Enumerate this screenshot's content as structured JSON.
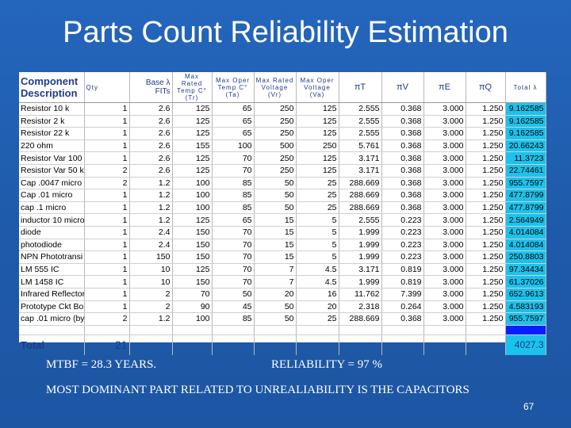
{
  "slide": {
    "title": "Parts Count Reliability Estimation",
    "page_number": "67",
    "mtbf_text": "MTBF = 28.3 YEARS.",
    "reliability_text": "RELIABILITY = 97 %",
    "note_text": "MOST DOMINANT  PART RELATED TO UNREALIABILITY IS THE CAPACITORS"
  },
  "table": {
    "headers": {
      "component": "Component Description",
      "qty": "Qty",
      "base": "Base λ FITs",
      "max_rated_temp": "Max Rated Temp C° (Tr)",
      "max_oper_temp": "Max Oper Temp C° (Ta)",
      "max_rated_voltage": "Max Rated Voltage (Vr)",
      "max_oper_voltage": "Max Oper Voltage (Va)",
      "pi_t": "πT",
      "pi_v": "πV",
      "pi_e": "πE",
      "pi_q": "πQ",
      "total": "Total λ"
    },
    "rows": [
      {
        "name": "Resistor 10 k",
        "qty": "1",
        "base": "2.6",
        "tr": "125",
        "ta": "65",
        "vr": "250",
        "va": "125",
        "pt": "2.555",
        "pv": "0.368",
        "pe": "3.000",
        "pq": "1.250",
        "total": "9.162585"
      },
      {
        "name": "Resistor 2 k",
        "qty": "1",
        "base": "2.6",
        "tr": "125",
        "ta": "65",
        "vr": "250",
        "va": "125",
        "pt": "2.555",
        "pv": "0.368",
        "pe": "3.000",
        "pq": "1.250",
        "total": "9.162585"
      },
      {
        "name": "Resistor 22 k",
        "qty": "1",
        "base": "2.6",
        "tr": "125",
        "ta": "65",
        "vr": "250",
        "va": "125",
        "pt": "2.555",
        "pv": "0.368",
        "pe": "3.000",
        "pq": "1.250",
        "total": "9.162585"
      },
      {
        "name": "220 ohm",
        "qty": "1",
        "base": "2.6",
        "tr": "155",
        "ta": "100",
        "vr": "500",
        "va": "250",
        "pt": "5.761",
        "pv": "0.368",
        "pe": "3.000",
        "pq": "1.250",
        "total": "20.66243"
      },
      {
        "name": "Resistor Var 100",
        "qty": "1",
        "base": "2.6",
        "tr": "125",
        "ta": "70",
        "vr": "250",
        "va": "125",
        "pt": "3.171",
        "pv": "0.368",
        "pe": "3.000",
        "pq": "1.250",
        "total": "11.3723"
      },
      {
        "name": "Resistor Var 50 k",
        "qty": "2",
        "base": "2.6",
        "tr": "125",
        "ta": "70",
        "vr": "250",
        "va": "125",
        "pt": "3.171",
        "pv": "0.368",
        "pe": "3.000",
        "pq": "1.250",
        "total": "22.74461"
      },
      {
        "name": "Cap .0047 micro",
        "qty": "2",
        "base": "1.2",
        "tr": "100",
        "ta": "85",
        "vr": "50",
        "va": "25",
        "pt": "288.669",
        "pv": "0.368",
        "pe": "3.000",
        "pq": "1.250",
        "total": "955.7597"
      },
      {
        "name": "Cap .01 micro",
        "qty": "1",
        "base": "1.2",
        "tr": "100",
        "ta": "85",
        "vr": "50",
        "va": "25",
        "pt": "288.669",
        "pv": "0.368",
        "pe": "3.000",
        "pq": "1.250",
        "total": "477.8799"
      },
      {
        "name": "cap .1 micro",
        "qty": "1",
        "base": "1.2",
        "tr": "100",
        "ta": "85",
        "vr": "50",
        "va": "25",
        "pt": "288.669",
        "pv": "0.368",
        "pe": "3.000",
        "pq": "1.250",
        "total": "477.8799"
      },
      {
        "name": "inductor 10 micro",
        "qty": "1",
        "base": "1.2",
        "tr": "125",
        "ta": "65",
        "vr": "15",
        "va": "5",
        "pt": "2.555",
        "pv": "0.223",
        "pe": "3.000",
        "pq": "1.250",
        "total": "2.564949"
      },
      {
        "name": "diode",
        "qty": "1",
        "base": "2.4",
        "tr": "150",
        "ta": "70",
        "vr": "15",
        "va": "5",
        "pt": "1.999",
        "pv": "0.223",
        "pe": "3.000",
        "pq": "1.250",
        "total": "4.014084"
      },
      {
        "name": "photodiode",
        "qty": "1",
        "base": "2.4",
        "tr": "150",
        "ta": "70",
        "vr": "15",
        "va": "5",
        "pt": "1.999",
        "pv": "0.223",
        "pe": "3.000",
        "pq": "1.250",
        "total": "4.014084"
      },
      {
        "name": "NPN Phototransi",
        "qty": "1",
        "base": "150",
        "tr": "150",
        "ta": "70",
        "vr": "15",
        "va": "5",
        "pt": "1.999",
        "pv": "0.223",
        "pe": "3.000",
        "pq": "1.250",
        "total": "250.8803"
      },
      {
        "name": "LM 555 IC",
        "qty": "1",
        "base": "10",
        "tr": "125",
        "ta": "70",
        "vr": "7",
        "va": "4.5",
        "pt": "3.171",
        "pv": "0.819",
        "pe": "3.000",
        "pq": "1.250",
        "total": "97.34434"
      },
      {
        "name": "LM 1458 IC",
        "qty": "1",
        "base": "10",
        "tr": "150",
        "ta": "70",
        "vr": "7",
        "va": "4.5",
        "pt": "1.999",
        "pv": "0.819",
        "pe": "3.000",
        "pq": "1.250",
        "total": "61.37026"
      },
      {
        "name": "Infrared Reflector",
        "qty": "1",
        "base": "2",
        "tr": "70",
        "ta": "50",
        "vr": "20",
        "va": "16",
        "pt": "11.762",
        "pv": "7.399",
        "pe": "3.000",
        "pq": "1.250",
        "total": "652.9613"
      },
      {
        "name": "Prototype Ckt Bo",
        "qty": "1",
        "base": "2",
        "tr": "90",
        "ta": "45",
        "vr": "50",
        "va": "20",
        "pt": "2.318",
        "pv": "0.264",
        "pe": "3.000",
        "pq": "1.250",
        "total": "4.583193"
      },
      {
        "name": "cap .01 micro (by",
        "qty": "2",
        "base": "1.2",
        "tr": "100",
        "ta": "85",
        "vr": "50",
        "va": "25",
        "pt": "288.669",
        "pv": "0.368",
        "pe": "3.000",
        "pq": "1.250",
        "total": "955.7597"
      }
    ],
    "total_label": "Total",
    "total_qty": "21",
    "total_sum": "4027.3"
  },
  "colors": {
    "background": "#1f5fb3",
    "total_cell": "#1bc2ec",
    "total_bar": "#0a1dff",
    "header_text": "#1f3c8a"
  }
}
